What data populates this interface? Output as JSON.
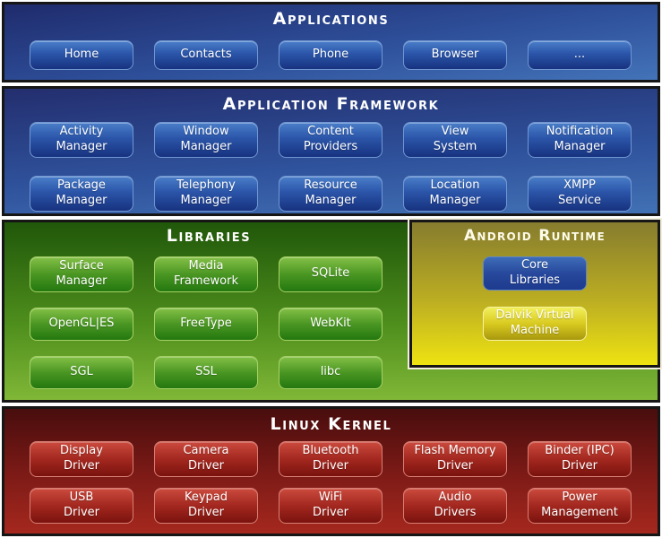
{
  "palette": {
    "border_black": "#161616",
    "blue_section_top": "#1f2b6c",
    "blue_section_bottom": "#4373b8",
    "blue_button_top": "#4a7ec9",
    "blue_button_bottom": "#17327f",
    "green_section_top": "#20570a",
    "green_section_bottom": "#80b737",
    "green_button_top": "#83c046",
    "green_button_bottom": "#24780f",
    "yellow_panel_top": "#867c2e",
    "yellow_panel_bottom": "#eee312",
    "yellow_button_top": "#f2ef5c",
    "yellow_button_bottom": "#a8980e",
    "red_section_top": "#480d0d",
    "red_section_bottom": "#a5281e",
    "red_button_top": "#cb4a3e",
    "red_button_bottom": "#7a120e",
    "title_text": "#ffffff"
  },
  "sections": {
    "applications": {
      "title": "Applications",
      "buttons": [
        "Home",
        "Contacts",
        "Phone",
        "Browser",
        "..."
      ]
    },
    "framework": {
      "title": "Application Framework",
      "buttons": [
        "Activity\nManager",
        "Window\nManager",
        "Content\nProviders",
        "View\nSystem",
        "Notification\nManager",
        "Package\nManager",
        "Telephony\nManager",
        "Resource\nManager",
        "Location\nManager",
        "XMPP\nService"
      ]
    },
    "libraries": {
      "title": "Libraries",
      "buttons": [
        "Surface\nManager",
        "Media\nFramework",
        "SQLite",
        "OpenGL|ES",
        "FreeType",
        "WebKit",
        "SGL",
        "SSL",
        "libc"
      ]
    },
    "runtime": {
      "title": "Android Runtime",
      "buttons": [
        "Core\nLibraries",
        "Dalvik Virtual\nMachine"
      ]
    },
    "kernel": {
      "title": "Linux Kernel",
      "buttons": [
        "Display\nDriver",
        "Camera\nDriver",
        "Bluetooth\nDriver",
        "Flash Memory\nDriver",
        "Binder (IPC)\nDriver",
        "USB\nDriver",
        "Keypad\nDriver",
        "WiFi\nDriver",
        "Audio\nDrivers",
        "Power\nManagement"
      ]
    }
  }
}
